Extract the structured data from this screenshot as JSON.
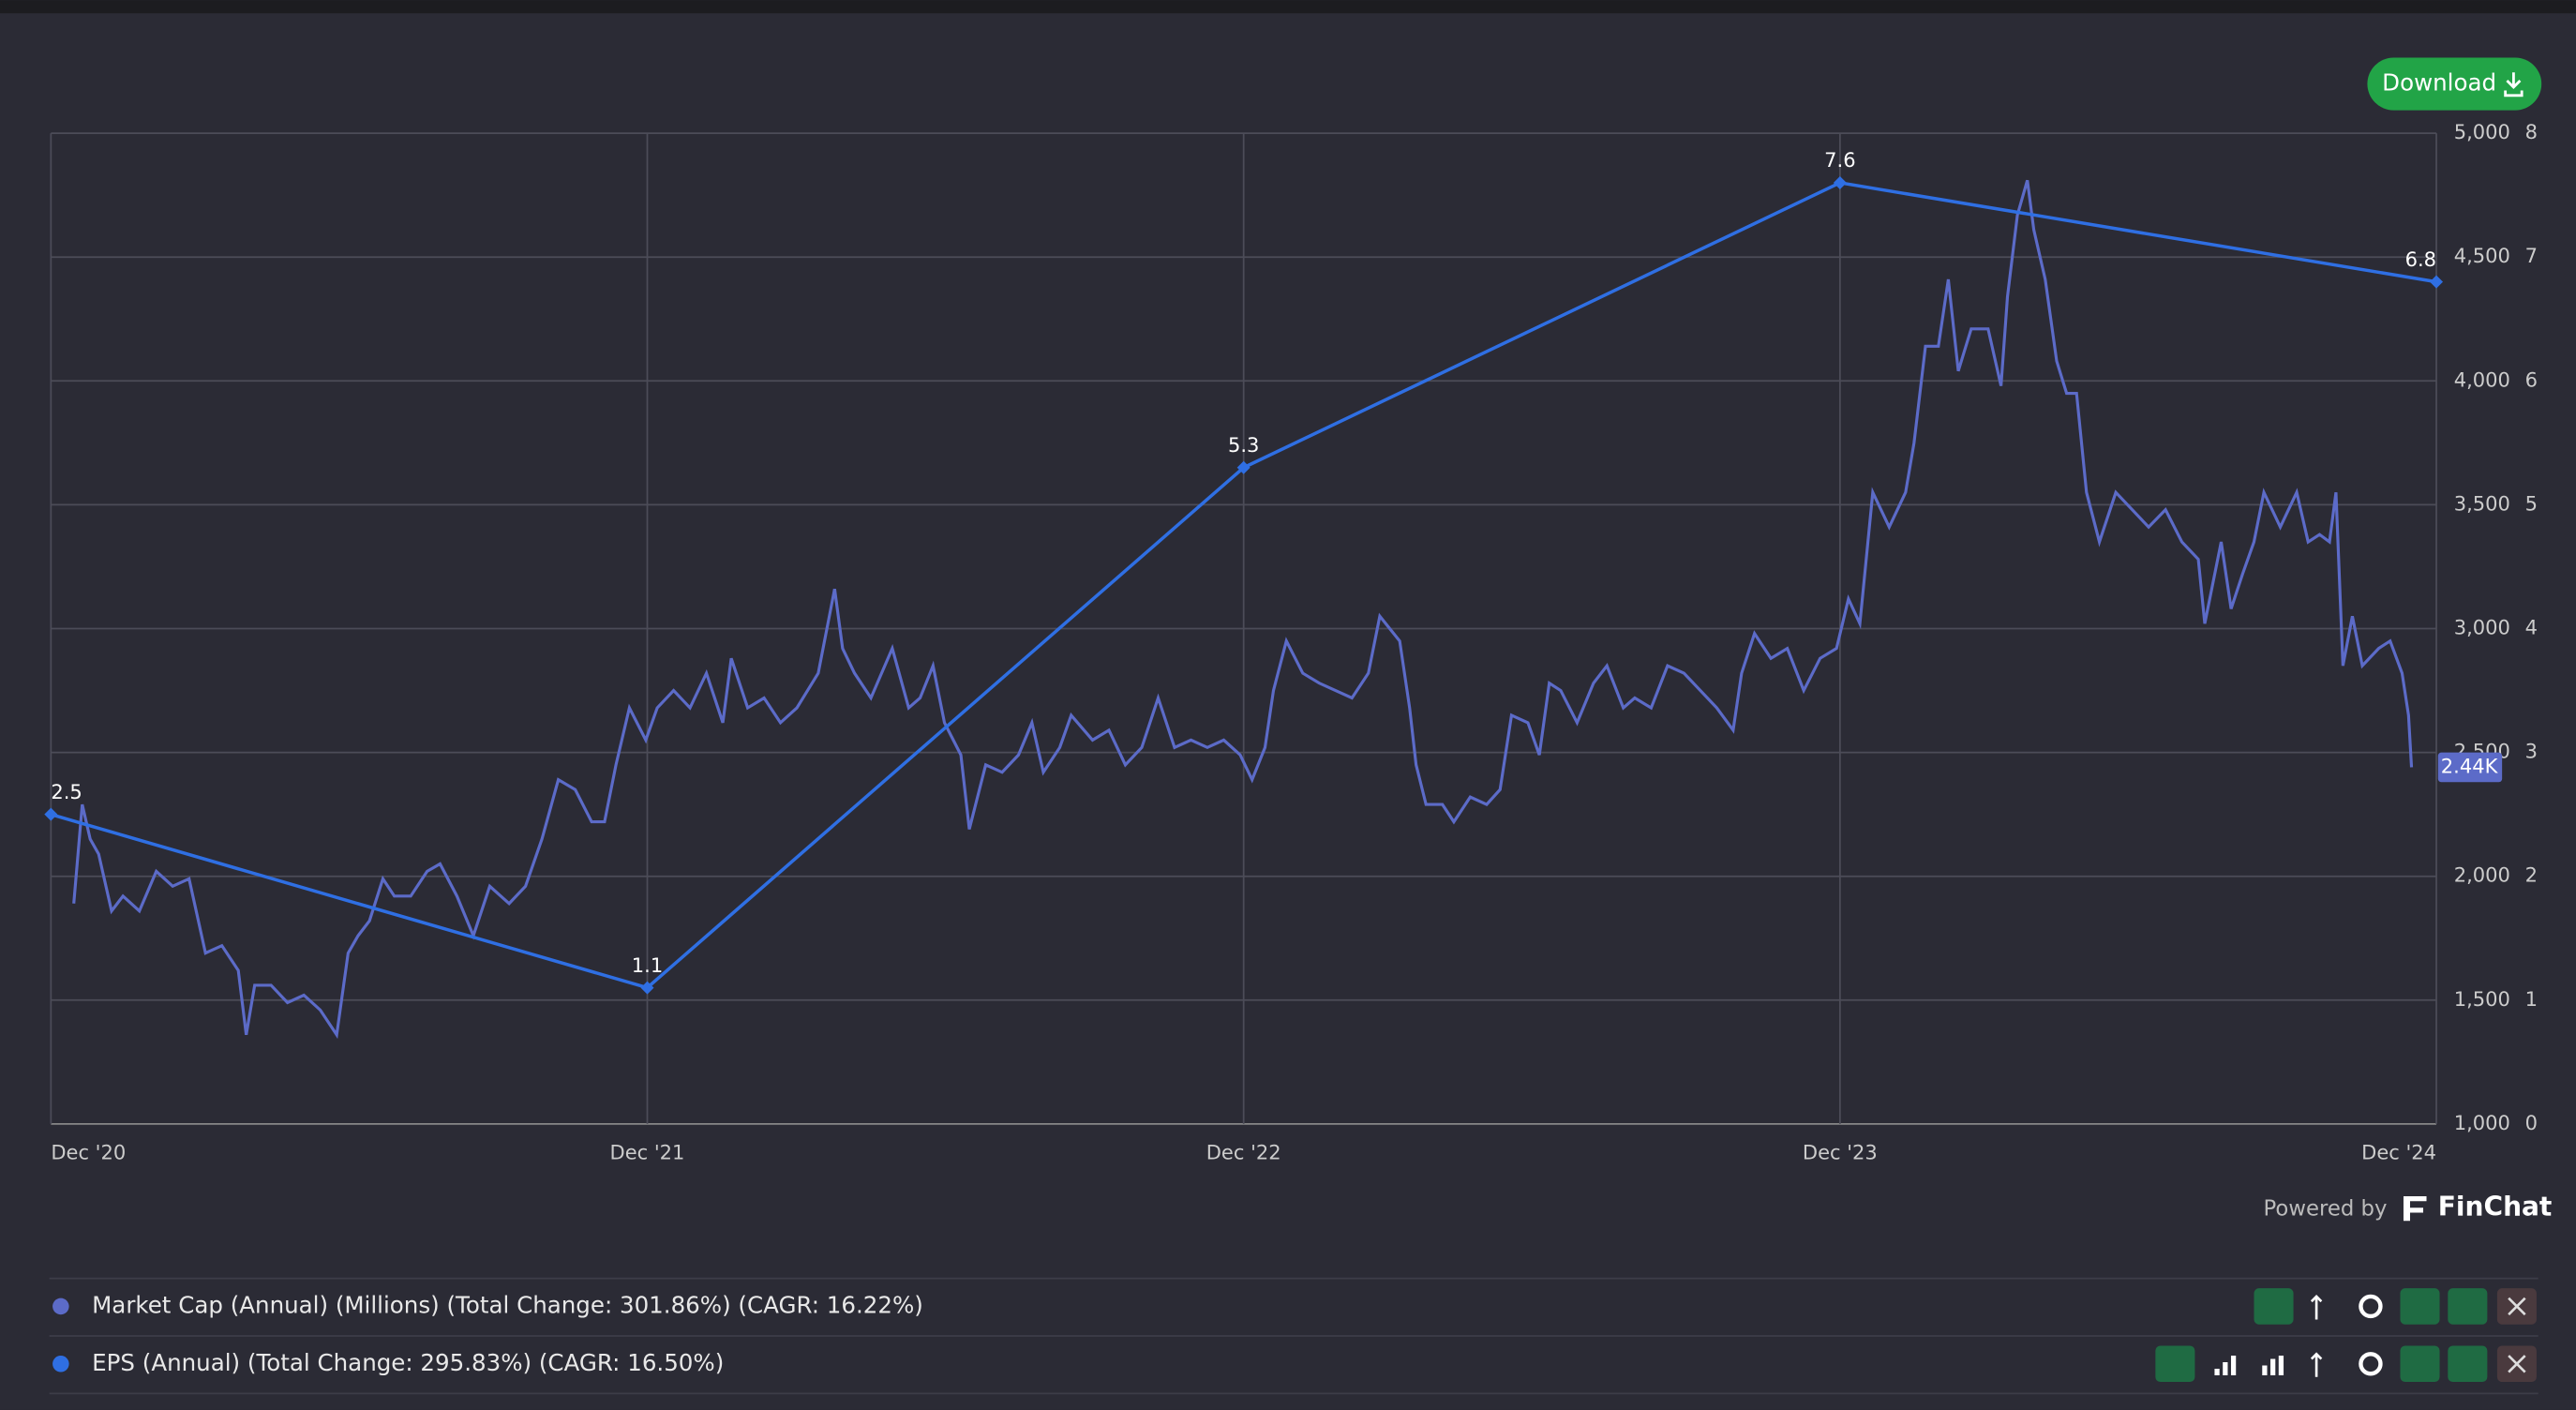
{
  "toolbar": {
    "download": "Download"
  },
  "footer": {
    "powered_by": "Powered by",
    "brand": "FinChat"
  },
  "chart_data": {
    "type": "line",
    "xlim": [
      0,
      48
    ],
    "xticks": [
      {
        "value": 0,
        "label": "Dec '20"
      },
      {
        "value": 12,
        "label": "Dec '21"
      },
      {
        "value": 24,
        "label": "Dec '22"
      },
      {
        "value": 36,
        "label": "Dec '23"
      },
      {
        "value": 48,
        "label": "Dec '24"
      }
    ],
    "ylim": [
      1000,
      5000
    ],
    "yticks": [
      {
        "value": 1000,
        "label": "1,000"
      },
      {
        "value": 1500,
        "label": "1,500"
      },
      {
        "value": 2000,
        "label": "2,000"
      },
      {
        "value": 2500,
        "label": "2,500"
      },
      {
        "value": 3000,
        "label": "3,000"
      },
      {
        "value": 3500,
        "label": "3,500"
      },
      {
        "value": 4000,
        "label": "4,000"
      },
      {
        "value": 4500,
        "label": "4,500"
      },
      {
        "value": 5000,
        "label": "5,000"
      }
    ],
    "y2lim": [
      0,
      8
    ],
    "y2ticks": [
      0,
      1,
      2,
      3,
      4,
      5,
      6,
      7,
      8
    ],
    "grid": true,
    "series": [
      {
        "name": "Market Cap (Annual) (Millions) (Total Change: 301.86%) (CAGR: 16.22%)",
        "color": "#5c6bc8",
        "axis": "y",
        "x": [
          0.46,
          0.63,
          0.79,
          0.96,
          1.22,
          1.45,
          1.78,
          2.12,
          2.45,
          2.78,
          3.11,
          3.44,
          3.77,
          3.93,
          4.1,
          4.43,
          4.76,
          5.09,
          5.42,
          5.75,
          5.98,
          6.18,
          6.41,
          6.68,
          6.91,
          7.24,
          7.57,
          7.83,
          8.17,
          8.5,
          8.83,
          9.22,
          9.55,
          9.88,
          10.21,
          10.55,
          10.88,
          11.14,
          11.37,
          11.64,
          11.97,
          12.2,
          12.53,
          12.86,
          13.19,
          13.52,
          13.69,
          14.02,
          14.35,
          14.68,
          15.01,
          15.44,
          15.77,
          15.93,
          16.17,
          16.5,
          16.93,
          17.26,
          17.49,
          17.75,
          17.98,
          18.31,
          18.48,
          18.81,
          19.14,
          19.47,
          19.74,
          19.97,
          20.3,
          20.53,
          20.96,
          21.29,
          21.62,
          21.95,
          22.28,
          22.61,
          22.94,
          23.27,
          23.6,
          23.93,
          24.17,
          24.43,
          24.6,
          24.86,
          25.19,
          25.52,
          25.85,
          26.18,
          26.51,
          26.74,
          27.14,
          27.34,
          27.47,
          27.67,
          28.0,
          28.23,
          28.56,
          28.89,
          29.16,
          29.39,
          29.72,
          29.95,
          30.15,
          30.38,
          30.71,
          31.04,
          31.31,
          31.64,
          31.87,
          32.2,
          32.53,
          32.86,
          33.19,
          33.52,
          33.85,
          34.02,
          34.28,
          34.61,
          34.94,
          35.27,
          35.6,
          35.93,
          36.17,
          36.4,
          36.66,
          36.99,
          37.32,
          37.49,
          37.72,
          37.98,
          38.18,
          38.38,
          38.64,
          38.98,
          39.24,
          39.37,
          39.57,
          39.77,
          39.9,
          40.13,
          40.36,
          40.56,
          40.76,
          40.96,
          41.22,
          41.55,
          41.88,
          42.21,
          42.55,
          42.88,
          43.21,
          43.34,
          43.67,
          43.87,
          44.1,
          44.33,
          44.53,
          44.86,
          45.19,
          45.42,
          45.65,
          45.85,
          45.98,
          46.12,
          46.31,
          46.51,
          46.84,
          47.07,
          47.31,
          47.44,
          47.5
        ],
        "values": [
          1890,
          2290,
          2150,
          2090,
          1860,
          1920,
          1860,
          2020,
          1960,
          1990,
          1690,
          1720,
          1620,
          1360,
          1560,
          1560,
          1490,
          1520,
          1460,
          1360,
          1690,
          1760,
          1820,
          1990,
          1920,
          1920,
          2020,
          2050,
          1920,
          1760,
          1960,
          1890,
          1960,
          2150,
          2390,
          2350,
          2220,
          2220,
          2450,
          2680,
          2550,
          2680,
          2750,
          2680,
          2820,
          2620,
          2880,
          2680,
          2720,
          2620,
          2680,
          2820,
          3160,
          2920,
          2820,
          2720,
          2920,
          2680,
          2720,
          2850,
          2620,
          2490,
          2190,
          2450,
          2420,
          2490,
          2620,
          2420,
          2520,
          2650,
          2550,
          2590,
          2450,
          2520,
          2720,
          2520,
          2550,
          2520,
          2550,
          2490,
          2390,
          2520,
          2750,
          2950,
          2820,
          2780,
          2750,
          2720,
          2820,
          3050,
          2950,
          2680,
          2450,
          2290,
          2290,
          2220,
          2320,
          2290,
          2350,
          2650,
          2620,
          2490,
          2780,
          2750,
          2620,
          2780,
          2850,
          2680,
          2720,
          2680,
          2850,
          2820,
          2750,
          2680,
          2590,
          2820,
          2980,
          2880,
          2920,
          2750,
          2880,
          2920,
          3120,
          3020,
          3550,
          3410,
          3550,
          3750,
          4140,
          4140,
          4410,
          4040,
          4210,
          4210,
          3980,
          4340,
          4670,
          4810,
          4610,
          4410,
          4080,
          3950,
          3950,
          3550,
          3350,
          3550,
          3480,
          3410,
          3480,
          3350,
          3280,
          3020,
          3350,
          3080,
          3220,
          3350,
          3550,
          3410,
          3550,
          3350,
          3380,
          3350,
          3550,
          2850,
          3050,
          2850,
          2920,
          2950,
          2820,
          2650,
          2440
        ],
        "end_label": {
          "value": 2440,
          "label": "2.44K"
        }
      },
      {
        "name": "EPS (Annual) (Total Change: 295.83%) (CAGR: 16.50%)",
        "color": "#2f6fe3",
        "axis": "y2",
        "x": [
          0,
          12,
          24,
          36,
          48
        ],
        "values": [
          2.5,
          1.1,
          5.3,
          7.6,
          6.8
        ],
        "data_labels": true,
        "markers": true
      }
    ]
  }
}
